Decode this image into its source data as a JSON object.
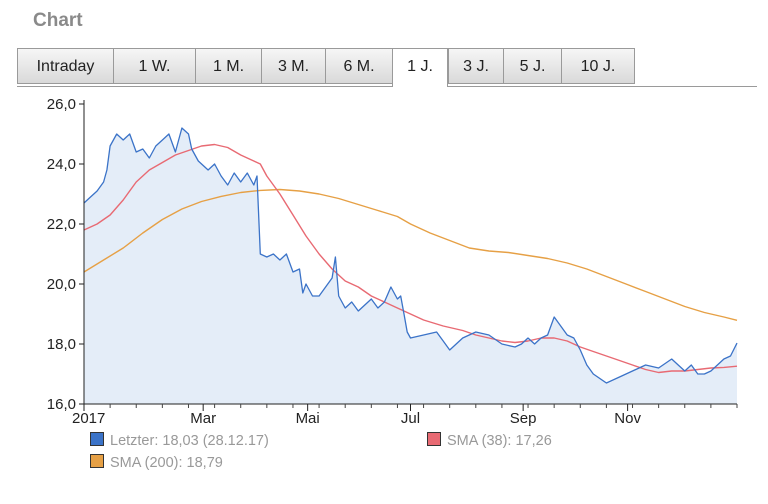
{
  "header": {
    "title": "Chart"
  },
  "tabs": [
    {
      "label": "Intraday",
      "active": false
    },
    {
      "label": "1 W.",
      "active": false
    },
    {
      "label": "1 M.",
      "active": false
    },
    {
      "label": "3 M.",
      "active": false
    },
    {
      "label": "6 M.",
      "active": false
    },
    {
      "label": "1 J.",
      "active": true
    },
    {
      "label": "3 J.",
      "active": false
    },
    {
      "label": "5 J.",
      "active": false
    },
    {
      "label": "10 J.",
      "active": false
    }
  ],
  "legend": [
    {
      "label": "Letzter: 18,03 (28.12.17)",
      "color": "#3b73c8"
    },
    {
      "label": "SMA (38): 17,26",
      "color": "#e86a73"
    },
    {
      "label": "SMA (200): 18,79",
      "color": "#e6a045"
    }
  ],
  "chart_data": {
    "type": "area",
    "ylim": [
      16,
      26
    ],
    "xlim": [
      0,
      1
    ],
    "yticks": [
      "16,0",
      "18,0",
      "20,0",
      "22,0",
      "24,0",
      "26,0"
    ],
    "yticks_values": [
      16,
      18,
      20,
      22,
      24,
      26
    ],
    "xticks": [
      "2017",
      "Mar",
      "Mai",
      "Jul",
      "Sep",
      "Nov"
    ],
    "xticks_values": [
      0,
      0.1825,
      0.3425,
      0.5,
      0.6725,
      0.8325
    ],
    "grid": false,
    "series": [
      {
        "name": "Letzter: 18,03 (28.12.17)",
        "color": "#3b73c8",
        "fill": "#e4edf8",
        "points": [
          [
            0,
            22.7
          ],
          [
            0.01,
            22.9
          ],
          [
            0.02,
            23.1
          ],
          [
            0.03,
            23.4
          ],
          [
            0.035,
            23.8
          ],
          [
            0.04,
            24.6
          ],
          [
            0.05,
            25.0
          ],
          [
            0.06,
            24.8
          ],
          [
            0.07,
            25.0
          ],
          [
            0.08,
            24.4
          ],
          [
            0.09,
            24.5
          ],
          [
            0.1,
            24.2
          ],
          [
            0.11,
            24.6
          ],
          [
            0.12,
            24.8
          ],
          [
            0.13,
            25.0
          ],
          [
            0.14,
            24.4
          ],
          [
            0.15,
            25.2
          ],
          [
            0.16,
            25.0
          ],
          [
            0.165,
            24.5
          ],
          [
            0.175,
            24.1
          ],
          [
            0.19,
            23.8
          ],
          [
            0.2,
            24.0
          ],
          [
            0.21,
            23.6
          ],
          [
            0.22,
            23.3
          ],
          [
            0.23,
            23.7
          ],
          [
            0.24,
            23.4
          ],
          [
            0.25,
            23.7
          ],
          [
            0.26,
            23.3
          ],
          [
            0.265,
            23.6
          ],
          [
            0.27,
            21.0
          ],
          [
            0.28,
            20.9
          ],
          [
            0.29,
            21.0
          ],
          [
            0.3,
            20.8
          ],
          [
            0.31,
            21.0
          ],
          [
            0.32,
            20.4
          ],
          [
            0.33,
            20.5
          ],
          [
            0.335,
            19.7
          ],
          [
            0.34,
            20.0
          ],
          [
            0.35,
            19.6
          ],
          [
            0.36,
            19.6
          ],
          [
            0.37,
            19.9
          ],
          [
            0.38,
            20.2
          ],
          [
            0.385,
            20.9
          ],
          [
            0.39,
            19.6
          ],
          [
            0.4,
            19.2
          ],
          [
            0.41,
            19.4
          ],
          [
            0.42,
            19.1
          ],
          [
            0.43,
            19.3
          ],
          [
            0.44,
            19.5
          ],
          [
            0.45,
            19.2
          ],
          [
            0.46,
            19.4
          ],
          [
            0.47,
            19.9
          ],
          [
            0.48,
            19.5
          ],
          [
            0.485,
            19.6
          ],
          [
            0.49,
            19.0
          ],
          [
            0.495,
            18.4
          ],
          [
            0.5,
            18.2
          ],
          [
            0.52,
            18.3
          ],
          [
            0.54,
            18.4
          ],
          [
            0.55,
            18.1
          ],
          [
            0.56,
            17.8
          ],
          [
            0.58,
            18.2
          ],
          [
            0.6,
            18.4
          ],
          [
            0.62,
            18.3
          ],
          [
            0.64,
            18.0
          ],
          [
            0.66,
            17.9
          ],
          [
            0.67,
            18.0
          ],
          [
            0.68,
            18.2
          ],
          [
            0.69,
            18.0
          ],
          [
            0.7,
            18.2
          ],
          [
            0.71,
            18.3
          ],
          [
            0.72,
            18.9
          ],
          [
            0.73,
            18.6
          ],
          [
            0.74,
            18.3
          ],
          [
            0.75,
            18.2
          ],
          [
            0.76,
            17.8
          ],
          [
            0.77,
            17.3
          ],
          [
            0.78,
            17.0
          ],
          [
            0.8,
            16.7
          ],
          [
            0.82,
            16.9
          ],
          [
            0.84,
            17.1
          ],
          [
            0.86,
            17.3
          ],
          [
            0.88,
            17.2
          ],
          [
            0.9,
            17.5
          ],
          [
            0.91,
            17.3
          ],
          [
            0.92,
            17.1
          ],
          [
            0.93,
            17.3
          ],
          [
            0.94,
            17.0
          ],
          [
            0.95,
            17.0
          ],
          [
            0.96,
            17.1
          ],
          [
            0.97,
            17.3
          ],
          [
            0.98,
            17.5
          ],
          [
            0.99,
            17.6
          ],
          [
            1.0,
            18.03
          ]
        ]
      },
      {
        "name": "SMA (38): 17,26",
        "color": "#e86a73",
        "points": [
          [
            0,
            21.8
          ],
          [
            0.02,
            22.0
          ],
          [
            0.04,
            22.3
          ],
          [
            0.06,
            22.8
          ],
          [
            0.08,
            23.4
          ],
          [
            0.1,
            23.8
          ],
          [
            0.12,
            24.05
          ],
          [
            0.14,
            24.3
          ],
          [
            0.16,
            24.45
          ],
          [
            0.18,
            24.6
          ],
          [
            0.2,
            24.65
          ],
          [
            0.22,
            24.55
          ],
          [
            0.24,
            24.3
          ],
          [
            0.26,
            24.1
          ],
          [
            0.27,
            24.0
          ],
          [
            0.28,
            23.6
          ],
          [
            0.3,
            23.0
          ],
          [
            0.32,
            22.3
          ],
          [
            0.34,
            21.6
          ],
          [
            0.36,
            21.0
          ],
          [
            0.38,
            20.5
          ],
          [
            0.4,
            20.1
          ],
          [
            0.42,
            19.9
          ],
          [
            0.44,
            19.6
          ],
          [
            0.46,
            19.4
          ],
          [
            0.48,
            19.2
          ],
          [
            0.5,
            19.0
          ],
          [
            0.52,
            18.8
          ],
          [
            0.55,
            18.6
          ],
          [
            0.58,
            18.45
          ],
          [
            0.6,
            18.3
          ],
          [
            0.62,
            18.2
          ],
          [
            0.64,
            18.1
          ],
          [
            0.66,
            18.05
          ],
          [
            0.68,
            18.1
          ],
          [
            0.7,
            18.2
          ],
          [
            0.72,
            18.2
          ],
          [
            0.74,
            18.1
          ],
          [
            0.76,
            17.9
          ],
          [
            0.78,
            17.75
          ],
          [
            0.8,
            17.6
          ],
          [
            0.82,
            17.45
          ],
          [
            0.84,
            17.3
          ],
          [
            0.86,
            17.15
          ],
          [
            0.88,
            17.05
          ],
          [
            0.9,
            17.1
          ],
          [
            0.92,
            17.1
          ],
          [
            0.94,
            17.15
          ],
          [
            0.96,
            17.2
          ],
          [
            0.98,
            17.22
          ],
          [
            1.0,
            17.26
          ]
        ]
      },
      {
        "name": "SMA (200): 18,79",
        "color": "#e6a045",
        "points": [
          [
            0,
            20.4
          ],
          [
            0.03,
            20.8
          ],
          [
            0.06,
            21.2
          ],
          [
            0.09,
            21.7
          ],
          [
            0.12,
            22.15
          ],
          [
            0.15,
            22.5
          ],
          [
            0.18,
            22.75
          ],
          [
            0.21,
            22.92
          ],
          [
            0.24,
            23.05
          ],
          [
            0.27,
            23.12
          ],
          [
            0.3,
            23.15
          ],
          [
            0.33,
            23.1
          ],
          [
            0.36,
            23.0
          ],
          [
            0.39,
            22.85
          ],
          [
            0.42,
            22.65
          ],
          [
            0.45,
            22.45
          ],
          [
            0.48,
            22.25
          ],
          [
            0.5,
            22.0
          ],
          [
            0.53,
            21.7
          ],
          [
            0.56,
            21.45
          ],
          [
            0.59,
            21.2
          ],
          [
            0.62,
            21.1
          ],
          [
            0.65,
            21.05
          ],
          [
            0.68,
            20.95
          ],
          [
            0.71,
            20.85
          ],
          [
            0.74,
            20.7
          ],
          [
            0.77,
            20.5
          ],
          [
            0.8,
            20.25
          ],
          [
            0.83,
            20.0
          ],
          [
            0.86,
            19.75
          ],
          [
            0.89,
            19.5
          ],
          [
            0.92,
            19.25
          ],
          [
            0.95,
            19.05
          ],
          [
            0.98,
            18.9
          ],
          [
            1.0,
            18.79
          ]
        ]
      }
    ]
  }
}
